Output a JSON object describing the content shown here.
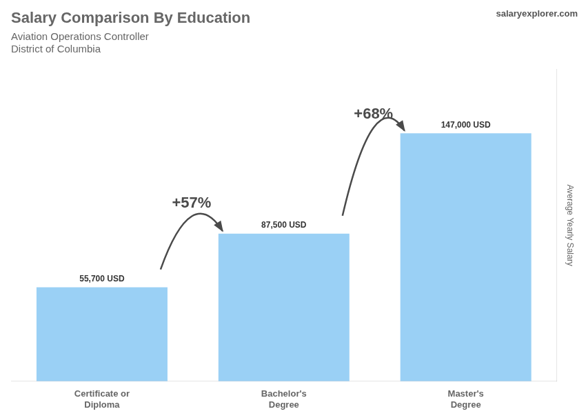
{
  "chart_data": {
    "type": "bar",
    "title": "Salary Comparison By Education",
    "subtitle": [
      "Aviation Operations Controller",
      "District of Columbia"
    ],
    "ylabel": "Average Yearly Salary",
    "categories": [
      "Certificate or\nDiploma",
      "Bachelor's\nDegree",
      "Master's\nDegree"
    ],
    "values": [
      55700,
      87500,
      147000
    ],
    "value_labels": [
      "55,700 USD",
      "87,500 USD",
      "147,000 USD"
    ],
    "data_labels": true,
    "ylim": [
      0,
      185000
    ],
    "grid": false,
    "tick_labels": "x",
    "annotations": [
      {
        "text": "+57%",
        "from": "Certificate or\nDiploma",
        "to": "Bachelor's\nDegree"
      },
      {
        "text": "+68%",
        "from": "Bachelor's\nDegree",
        "to": "Master's\nDegree"
      },
      {
        "text": "salaryexplorer.com"
      }
    ]
  }
}
